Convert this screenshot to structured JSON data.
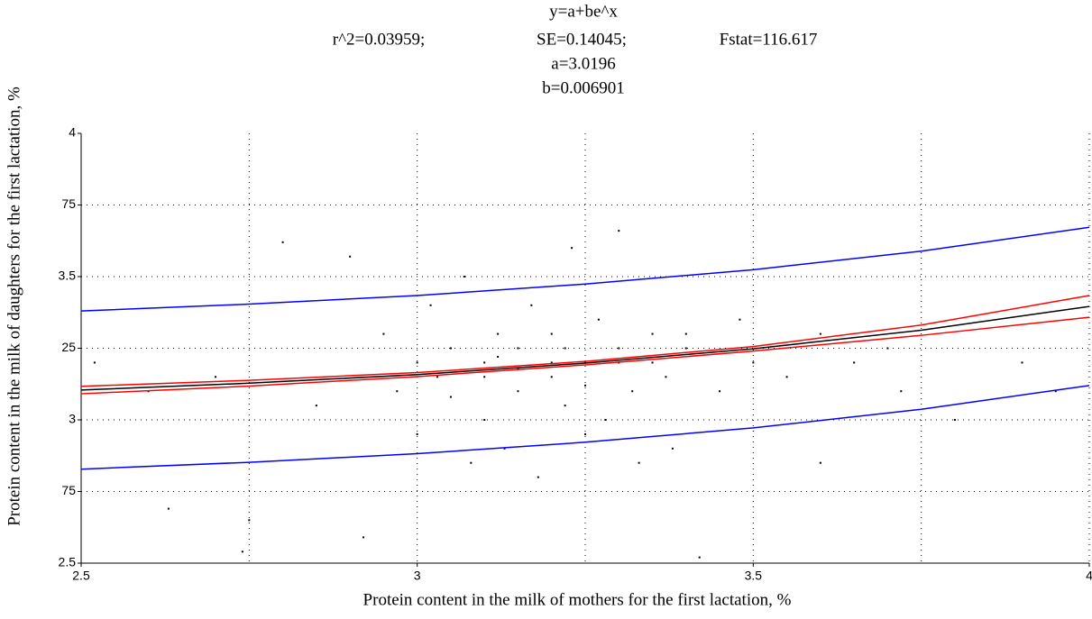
{
  "chart_data": {
    "type": "scatter",
    "title": "y=a+be^x",
    "stats": [
      "r^2=0.03959;",
      "SE=0.14045;",
      "Fstat=116.617"
    ],
    "params": [
      "a=3.0196",
      "b=0.006901"
    ],
    "x_label": "Protein content in the milk of mothers for the first lactation, %",
    "y_label": "Protein content in the milk of daughters for the first lactation, %",
    "xlim": [
      2.5,
      4
    ],
    "ylim": [
      2.5,
      4
    ],
    "xticks": [
      2.5,
      3,
      3.5,
      4
    ],
    "xminor": [
      2.75,
      3.25,
      3.75
    ],
    "yticks": [
      2.5,
      {
        "value": 2.75,
        "label": "75"
      },
      3,
      {
        "value": 3.25,
        "label": "25"
      },
      3.5,
      {
        "value": 3.75,
        "label": "75"
      },
      4
    ],
    "grid": true,
    "points": {
      "color": "#000000",
      "x": [
        2.52,
        2.6,
        2.63,
        2.7,
        2.74,
        2.75,
        2.8,
        2.85,
        2.9,
        2.92,
        2.95,
        2.97,
        3.0,
        3.0,
        3.02,
        3.03,
        3.05,
        3.05,
        3.07,
        3.08,
        3.1,
        3.1,
        3.1,
        3.12,
        3.12,
        3.13,
        3.15,
        3.15,
        3.15,
        3.17,
        3.18,
        3.2,
        3.2,
        3.2,
        3.22,
        3.22,
        3.23,
        3.25,
        3.25,
        3.25,
        3.27,
        3.28,
        3.3,
        3.3,
        3.3,
        3.32,
        3.33,
        3.35,
        3.35,
        3.37,
        3.38,
        3.4,
        3.4,
        3.42,
        3.45,
        3.48,
        3.5,
        3.55,
        3.6,
        3.6,
        3.65,
        3.7,
        3.72,
        3.8,
        3.9,
        3.95
      ],
      "y": [
        3.2,
        3.1,
        2.69,
        3.15,
        2.54,
        2.65,
        3.62,
        3.05,
        3.57,
        2.59,
        3.3,
        3.1,
        3.2,
        2.95,
        3.4,
        3.15,
        3.25,
        3.08,
        3.5,
        2.85,
        3.2,
        3.15,
        3.0,
        3.3,
        3.22,
        2.9,
        3.18,
        3.25,
        3.1,
        3.4,
        2.8,
        3.2,
        3.15,
        3.3,
        3.05,
        3.25,
        3.6,
        3.2,
        3.12,
        2.95,
        3.35,
        3.0,
        3.2,
        3.25,
        3.66,
        3.1,
        2.85,
        3.2,
        3.3,
        3.15,
        2.9,
        3.3,
        3.25,
        2.52,
        3.1,
        3.35,
        3.2,
        3.15,
        3.3,
        2.85,
        3.2,
        3.25,
        3.1,
        3.0,
        3.2,
        3.1
      ]
    },
    "curve_x": [
      2.5,
      2.75,
      3,
      3.25,
      3.5,
      3.75,
      4
    ],
    "curves": [
      {
        "color": "#0000ff",
        "y": [
          3.38,
          3.404,
          3.434,
          3.474,
          3.524,
          3.589,
          3.672
        ]
      },
      {
        "color": "#0000ff",
        "y": [
          2.828,
          2.852,
          2.882,
          2.922,
          2.972,
          3.037,
          3.12
        ]
      },
      {
        "color": "#ff0000",
        "y": [
          3.117,
          3.138,
          3.165,
          3.204,
          3.256,
          3.331,
          3.434
        ]
      },
      {
        "color": "#ff0000",
        "y": [
          3.091,
          3.118,
          3.151,
          3.192,
          3.24,
          3.295,
          3.358
        ]
      },
      {
        "color": "#000000",
        "y": [
          3.104,
          3.128,
          3.158,
          3.198,
          3.248,
          3.313,
          3.396
        ]
      }
    ]
  }
}
